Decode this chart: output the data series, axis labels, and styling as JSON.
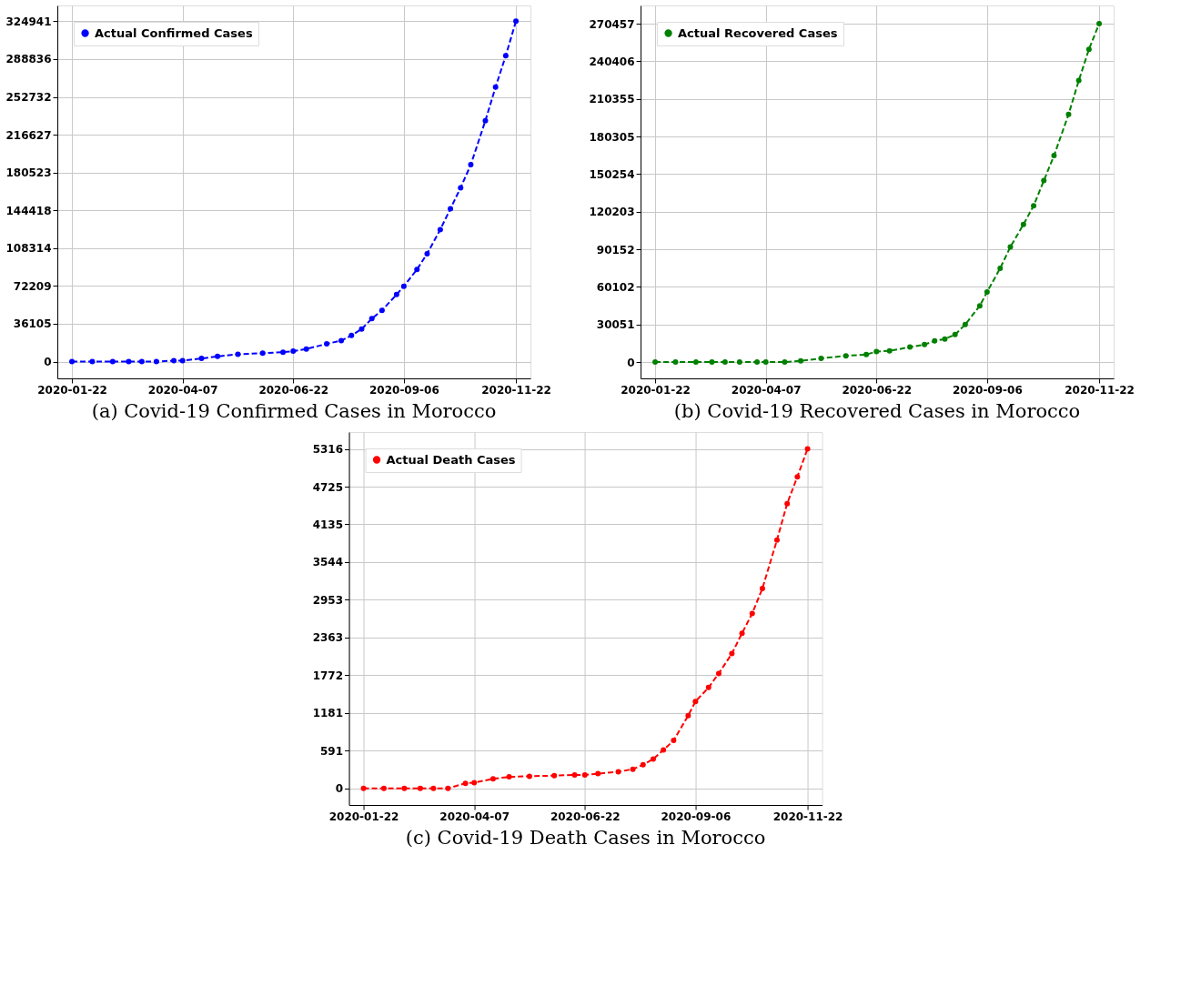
{
  "chart_data": [
    {
      "type": "line",
      "title": "(a) Covid-19 Confirmed Cases in Morocco",
      "grid": true,
      "legend": "top left",
      "marker": "circle",
      "line_style": "dashed",
      "x": [
        "2020-01-22",
        "2020-02-05",
        "2020-02-19",
        "2020-03-01",
        "2020-03-10",
        "2020-03-20",
        "2020-04-01",
        "2020-04-07",
        "2020-04-20",
        "2020-05-01",
        "2020-05-15",
        "2020-06-01",
        "2020-06-15",
        "2020-06-22",
        "2020-07-01",
        "2020-07-15",
        "2020-07-25",
        "2020-08-01",
        "2020-08-08",
        "2020-08-15",
        "2020-08-22",
        "2020-09-01",
        "2020-09-06",
        "2020-09-15",
        "2020-09-22",
        "2020-10-01",
        "2020-10-08",
        "2020-10-15",
        "2020-10-22",
        "2020-11-01",
        "2020-11-08",
        "2020-11-15",
        "2020-11-22"
      ],
      "xlim": [
        "2020-01-12",
        "2020-12-02"
      ],
      "xticks": [
        "2020-01-22",
        "2020-04-07",
        "2020-06-22",
        "2020-09-06",
        "2020-11-22"
      ],
      "ylim": [
        -16000,
        340000
      ],
      "yticks": [
        0,
        36105,
        72209,
        108314,
        144418,
        180523,
        216627,
        252732,
        288836,
        324941
      ],
      "series": [
        {
          "name": "Actual Confirmed Cases",
          "color": "#0000ff",
          "values": [
            0,
            0,
            0,
            0,
            0,
            0,
            1000,
            1000,
            3000,
            5000,
            7000,
            8000,
            9000,
            10000,
            12000,
            17000,
            20000,
            25000,
            31000,
            41000,
            49000,
            64000,
            72000,
            88000,
            103000,
            126000,
            146000,
            166000,
            188000,
            230000,
            262000,
            292000,
            324941
          ]
        }
      ]
    },
    {
      "type": "line",
      "title": "(b) Covid-19 Recovered Cases in Morocco",
      "grid": true,
      "legend": "top left",
      "marker": "circle",
      "line_style": "dashed",
      "x": [
        "2020-01-22",
        "2020-02-05",
        "2020-02-19",
        "2020-03-01",
        "2020-03-10",
        "2020-03-20",
        "2020-04-01",
        "2020-04-07",
        "2020-04-20",
        "2020-05-01",
        "2020-05-15",
        "2020-06-01",
        "2020-06-15",
        "2020-06-22",
        "2020-07-01",
        "2020-07-15",
        "2020-07-25",
        "2020-08-01",
        "2020-08-08",
        "2020-08-15",
        "2020-08-22",
        "2020-09-01",
        "2020-09-06",
        "2020-09-15",
        "2020-09-22",
        "2020-10-01",
        "2020-10-08",
        "2020-10-15",
        "2020-10-22",
        "2020-11-01",
        "2020-11-08",
        "2020-11-15",
        "2020-11-22"
      ],
      "xlim": [
        "2020-01-12",
        "2020-12-02"
      ],
      "xticks": [
        "2020-01-22",
        "2020-04-07",
        "2020-06-22",
        "2020-09-06",
        "2020-11-22"
      ],
      "ylim": [
        -13000,
        285000
      ],
      "yticks": [
        0,
        30051,
        60102,
        90152,
        120203,
        150254,
        180305,
        210355,
        240406,
        270457
      ],
      "series": [
        {
          "name": "Actual Recovered Cases",
          "color": "#008000",
          "values": [
            0,
            0,
            0,
            0,
            0,
            0,
            0,
            0,
            0,
            1000,
            3000,
            5000,
            6000,
            8500,
            9000,
            12000,
            14000,
            17000,
            18500,
            22000,
            30000,
            45000,
            56000,
            75000,
            92000,
            110000,
            125000,
            145000,
            165000,
            198000,
            225000,
            250000,
            270457
          ]
        }
      ]
    },
    {
      "type": "line",
      "title": "(c) Covid-19 Death Cases in Morocco",
      "grid": true,
      "legend": "top left",
      "marker": "circle",
      "line_style": "dashed",
      "x": [
        "2020-01-22",
        "2020-02-05",
        "2020-02-19",
        "2020-03-01",
        "2020-03-10",
        "2020-03-20",
        "2020-04-01",
        "2020-04-07",
        "2020-04-20",
        "2020-05-01",
        "2020-05-15",
        "2020-06-01",
        "2020-06-15",
        "2020-06-22",
        "2020-07-01",
        "2020-07-15",
        "2020-07-25",
        "2020-08-01",
        "2020-08-08",
        "2020-08-15",
        "2020-08-22",
        "2020-09-01",
        "2020-09-06",
        "2020-09-15",
        "2020-09-22",
        "2020-10-01",
        "2020-10-08",
        "2020-10-15",
        "2020-10-22",
        "2020-11-01",
        "2020-11-08",
        "2020-11-15",
        "2020-11-22"
      ],
      "xlim": [
        "2020-01-12",
        "2020-12-02"
      ],
      "xticks": [
        "2020-01-22",
        "2020-04-07",
        "2020-06-22",
        "2020-09-06",
        "2020-11-22"
      ],
      "ylim": [
        -260,
        5580
      ],
      "yticks": [
        0,
        591,
        1181,
        1772,
        2363,
        2953,
        3544,
        4135,
        4725,
        5316
      ],
      "series": [
        {
          "name": "Actual Death Cases",
          "color": "#ff0000",
          "values": [
            0,
            0,
            0,
            0,
            0,
            0,
            80,
            90,
            150,
            180,
            190,
            200,
            210,
            210,
            230,
            260,
            300,
            370,
            460,
            600,
            750,
            1140,
            1360,
            1580,
            1800,
            2110,
            2430,
            2740,
            3130,
            3890,
            4460,
            4880,
            5316
          ]
        }
      ]
    }
  ]
}
